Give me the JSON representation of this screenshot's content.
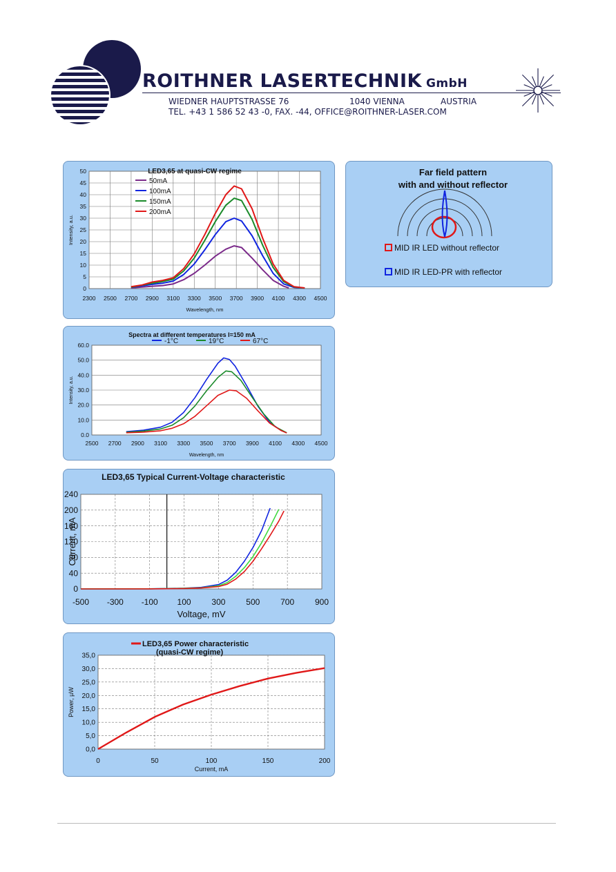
{
  "header": {
    "company": "ROITHNER LASERTECHNIK",
    "company_suffix": "GmbH",
    "address_street": "WIEDNER HAUPTSTRASSE 76",
    "address_city": "1040 VIENNA",
    "address_country": "AUSTRIA",
    "contact": "TEL. +43 1 586 52 43 -0, FAX. -44, OFFICE@ROITHNER-LASER.COM"
  },
  "colors": {
    "panel_bg": "#a9cff4",
    "panel_border": "#6f97c3",
    "brand_navy": "#1a1a4a",
    "purple": "#7b2a8a",
    "blue": "#1024e0",
    "green": "#1a8a2a",
    "red": "#e01818",
    "light_green": "#3ed93e"
  },
  "far_field": {
    "title_line1": "Far field pattern",
    "title_line2": "with and without reflector",
    "legend": [
      {
        "label": "MID IR LED without reflector",
        "color": "#e01818"
      },
      {
        "label": "MID IR LED-PR with reflector",
        "color": "#1024e0"
      }
    ]
  },
  "chart_data": [
    {
      "type": "line",
      "title": "LED3,65 at quasi-CW regime",
      "xlabel": "Wavelength, nm",
      "ylabel": "Intensity, a.u.",
      "xlim": [
        2300,
        4500
      ],
      "ylim": [
        0,
        50
      ],
      "xticks": [
        "2300",
        "2500",
        "2700",
        "2900",
        "3100",
        "3300",
        "3500",
        "3700",
        "3900",
        "4100",
        "4300",
        "4500"
      ],
      "yticks": [
        "0",
        "5",
        "10",
        "15",
        "20",
        "25",
        "30",
        "35",
        "40",
        "45",
        "50"
      ],
      "grid": "both",
      "legend": "top-left",
      "series": [
        {
          "name": "50mA",
          "color": "#7b2a8a",
          "points": [
            [
              2700,
              0.3
            ],
            [
              2900,
              1.0
            ],
            [
              3000,
              1.3
            ],
            [
              3100,
              2.0
            ],
            [
              3200,
              3.8
            ],
            [
              3300,
              6.5
            ],
            [
              3400,
              10
            ],
            [
              3500,
              13.8
            ],
            [
              3600,
              16.8
            ],
            [
              3680,
              18.2
            ],
            [
              3750,
              17.5
            ],
            [
              3850,
              13
            ],
            [
              3950,
              8
            ],
            [
              4050,
              3.5
            ],
            [
              4150,
              1.0
            ],
            [
              4200,
              0.3
            ]
          ]
        },
        {
          "name": "100mA",
          "color": "#1024e0",
          "points": [
            [
              2700,
              0.5
            ],
            [
              2900,
              1.8
            ],
            [
              3000,
              2.3
            ],
            [
              3100,
              3.2
            ],
            [
              3200,
              6
            ],
            [
              3300,
              10.5
            ],
            [
              3400,
              16.5
            ],
            [
              3500,
              23
            ],
            [
              3600,
              28.5
            ],
            [
              3680,
              30
            ],
            [
              3750,
              28.8
            ],
            [
              3850,
              22.5
            ],
            [
              3950,
              14
            ],
            [
              4050,
              6.5
            ],
            [
              4150,
              2.0
            ],
            [
              4250,
              0.5
            ],
            [
              4350,
              0.2
            ]
          ]
        },
        {
          "name": "150mA",
          "color": "#1a8a2a",
          "points": [
            [
              2700,
              0.6
            ],
            [
              2900,
              2.3
            ],
            [
              3000,
              3.0
            ],
            [
              3100,
              4.0
            ],
            [
              3200,
              7.5
            ],
            [
              3300,
              13
            ],
            [
              3400,
              20.5
            ],
            [
              3500,
              28.5
            ],
            [
              3600,
              35.5
            ],
            [
              3680,
              38.5
            ],
            [
              3750,
              37.5
            ],
            [
              3850,
              29.5
            ],
            [
              3950,
              18.5
            ],
            [
              4050,
              9
            ],
            [
              4150,
              3.0
            ],
            [
              4250,
              0.7
            ],
            [
              4350,
              0.2
            ]
          ]
        },
        {
          "name": "200mA",
          "color": "#e01818",
          "points": [
            [
              2700,
              0.8
            ],
            [
              2800,
              1.5
            ],
            [
              2900,
              2.8
            ],
            [
              3000,
              3.5
            ],
            [
              3100,
              4.6
            ],
            [
              3200,
              8.5
            ],
            [
              3300,
              14.8
            ],
            [
              3400,
              23
            ],
            [
              3500,
              32
            ],
            [
              3600,
              40
            ],
            [
              3680,
              43.7
            ],
            [
              3750,
              42.5
            ],
            [
              3850,
              34
            ],
            [
              3950,
              21.5
            ],
            [
              4050,
              10.5
            ],
            [
              4150,
              3.5
            ],
            [
              4250,
              0.8
            ],
            [
              4350,
              0.3
            ]
          ]
        }
      ]
    },
    {
      "type": "line",
      "title": "Spectra at different temperatures I=150 mA",
      "xlabel": "Wavelength, nm",
      "ylabel": "Intensity, a.u.",
      "xlim": [
        2500,
        4500
      ],
      "ylim": [
        0,
        60
      ],
      "xticks": [
        "2500",
        "2700",
        "2900",
        "3100",
        "3300",
        "3500",
        "3700",
        "3900",
        "4100",
        "4300",
        "4500"
      ],
      "yticks": [
        "0.0",
        "10.0",
        "20.0",
        "30.0",
        "40.0",
        "50.0",
        "60.0"
      ],
      "grid": "horizontal",
      "legend": "top",
      "series": [
        {
          "name": "-1°C",
          "color": "#1024e0",
          "points": [
            [
              2800,
              2.2
            ],
            [
              2950,
              3.2
            ],
            [
              3100,
              5.2
            ],
            [
              3200,
              8.5
            ],
            [
              3300,
              15
            ],
            [
              3400,
              25
            ],
            [
              3500,
              37
            ],
            [
              3600,
              48
            ],
            [
              3650,
              51.5
            ],
            [
              3700,
              50.5
            ],
            [
              3750,
              46
            ],
            [
              3850,
              33
            ],
            [
              3950,
              19
            ],
            [
              4050,
              8.5
            ],
            [
              4150,
              3
            ],
            [
              4200,
              1.5
            ]
          ]
        },
        {
          "name": "19°C",
          "color": "#1a8a2a",
          "points": [
            [
              2800,
              1.8
            ],
            [
              2950,
              2.6
            ],
            [
              3100,
              4
            ],
            [
              3200,
              6.5
            ],
            [
              3300,
              11.5
            ],
            [
              3400,
              19.5
            ],
            [
              3500,
              29.5
            ],
            [
              3600,
              38.5
            ],
            [
              3670,
              42.8
            ],
            [
              3720,
              42.3
            ],
            [
              3800,
              36.5
            ],
            [
              3900,
              25
            ],
            [
              4000,
              14
            ],
            [
              4100,
              5.5
            ],
            [
              4200,
              1.5
            ]
          ]
        },
        {
          "name": "67°C",
          "color": "#e01818",
          "points": [
            [
              2800,
              1.5
            ],
            [
              2950,
              1.9
            ],
            [
              3100,
              2.8
            ],
            [
              3200,
              4.5
            ],
            [
              3300,
              7.5
            ],
            [
              3400,
              12.5
            ],
            [
              3500,
              19.5
            ],
            [
              3600,
              26.5
            ],
            [
              3700,
              30
            ],
            [
              3760,
              29.5
            ],
            [
              3850,
              24.5
            ],
            [
              3950,
              16
            ],
            [
              4050,
              8
            ],
            [
              4150,
              3
            ],
            [
              4200,
              1.3
            ]
          ]
        }
      ]
    },
    {
      "type": "line",
      "title": "LED3,65 Typical Current-Voltage characteristic",
      "xlabel": "Voltage, mV",
      "ylabel": "Current, mA",
      "xlim": [
        -500,
        900
      ],
      "ylim": [
        0,
        240
      ],
      "xticks": [
        "-500",
        "-300",
        "-100",
        "100",
        "300",
        "500",
        "700",
        "900"
      ],
      "yticks": [
        "0",
        "40",
        "80",
        "120",
        "160",
        "200",
        "240"
      ],
      "grid": "both",
      "series": [
        {
          "color": "#1024e0",
          "points": [
            [
              -500,
              0
            ],
            [
              -100,
              0.3
            ],
            [
              100,
              2
            ],
            [
              200,
              4
            ],
            [
              300,
              11
            ],
            [
              350,
              22
            ],
            [
              400,
              42
            ],
            [
              450,
              70
            ],
            [
              500,
              105
            ],
            [
              550,
              148
            ],
            [
              600,
              205
            ]
          ]
        },
        {
          "color": "#3ed93e",
          "points": [
            [
              -500,
              0
            ],
            [
              -100,
              0.3
            ],
            [
              100,
              1.5
            ],
            [
              200,
              3
            ],
            [
              300,
              8
            ],
            [
              350,
              16
            ],
            [
              400,
              32
            ],
            [
              450,
              54
            ],
            [
              500,
              82
            ],
            [
              550,
              117
            ],
            [
              600,
              158
            ],
            [
              650,
              202
            ]
          ]
        },
        {
          "color": "#e01818",
          "points": [
            [
              -500,
              0
            ],
            [
              -100,
              0.2
            ],
            [
              100,
              1
            ],
            [
              200,
              2.5
            ],
            [
              300,
              6
            ],
            [
              350,
              12
            ],
            [
              400,
              25
            ],
            [
              450,
              44
            ],
            [
              500,
              70
            ],
            [
              550,
              102
            ],
            [
              600,
              136
            ],
            [
              650,
              172
            ],
            [
              680,
              198
            ]
          ]
        }
      ]
    },
    {
      "type": "line",
      "title": "LED3,65 Power characteristic",
      "subtitle": "(quasi-CW regime)",
      "xlabel": "Current, mA",
      "ylabel": "Power, µW",
      "xlim": [
        0,
        200
      ],
      "ylim": [
        0,
        35
      ],
      "xticks": [
        "0",
        "50",
        "100",
        "150",
        "200"
      ],
      "yticks": [
        "0,0",
        "5,0",
        "10,0",
        "15,0",
        "20,0",
        "25,0",
        "30,0",
        "35,0"
      ],
      "grid": "both",
      "series": [
        {
          "color": "#e01818",
          "points": [
            [
              0,
              0
            ],
            [
              25,
              6.2
            ],
            [
              50,
              12
            ],
            [
              75,
              16.6
            ],
            [
              100,
              20.3
            ],
            [
              125,
              23.5
            ],
            [
              150,
              26.3
            ],
            [
              175,
              28.4
            ],
            [
              200,
              30.2
            ]
          ]
        }
      ]
    }
  ]
}
